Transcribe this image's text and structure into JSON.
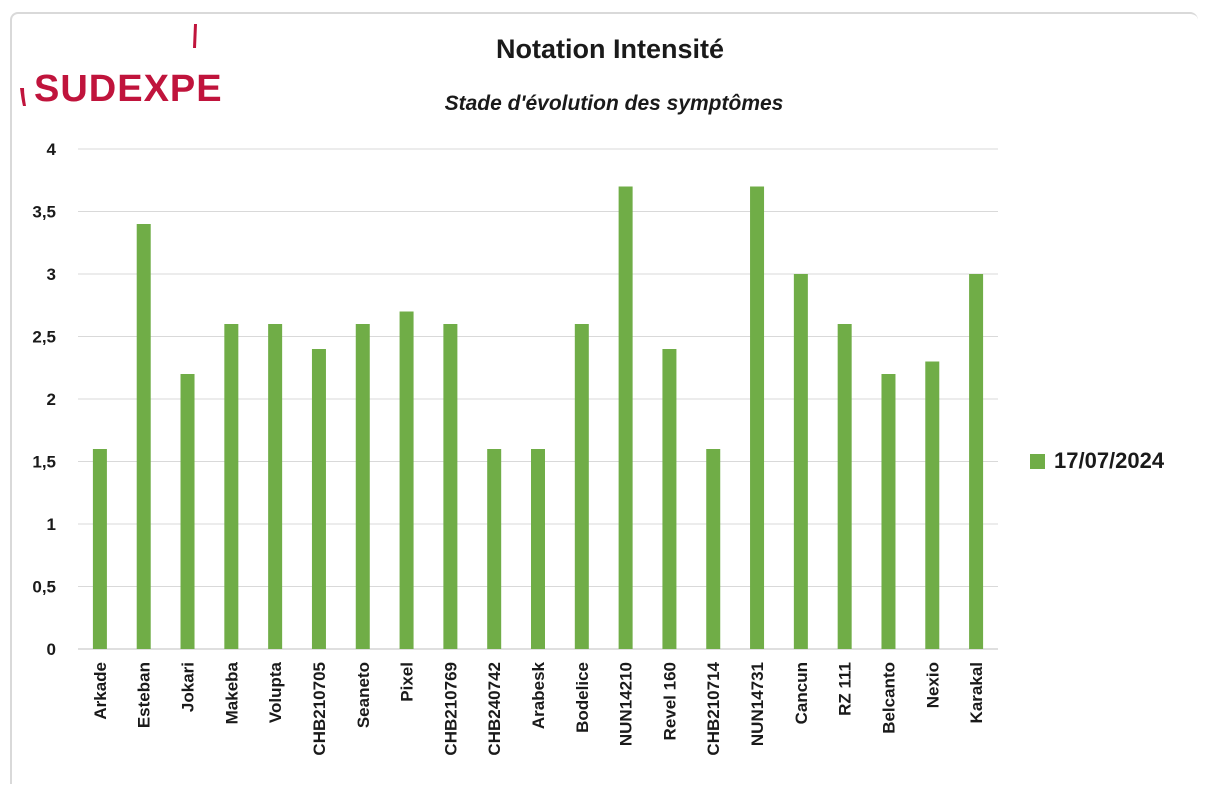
{
  "logo": {
    "text": "SUDEXPE",
    "color": "#c0143c"
  },
  "chart_data": {
    "type": "bar",
    "title": "Notation Intensité",
    "subtitle": "Stade d'évolution des symptômes",
    "xlabel": "",
    "ylabel": "",
    "ylim": [
      0,
      4
    ],
    "yticks": [
      "0",
      "0,5",
      "1",
      "1,5",
      "2",
      "2,5",
      "3",
      "3,5",
      "4"
    ],
    "grid": true,
    "legend_position": "right",
    "categories": [
      "Arkade",
      "Esteban",
      "Jokari",
      "Makeba",
      "Volupta",
      "CHB210705",
      "Seaneto",
      "Pixel",
      "CHB210769",
      "CHB240742",
      "Arabesk",
      "Bodelice",
      "NUN14210",
      "Revel 160",
      "CHB210714",
      "NUN14731",
      "Cancun",
      "RZ 111",
      "Belcanto",
      "Nexio",
      "Karakal"
    ],
    "series": [
      {
        "name": "17/07/2024",
        "color": "#70ad47",
        "values": [
          1.6,
          3.4,
          2.2,
          2.6,
          2.6,
          2.4,
          2.6,
          2.7,
          2.6,
          1.6,
          1.6,
          2.6,
          3.7,
          2.4,
          1.6,
          3.7,
          3.0,
          2.6,
          2.2,
          2.3,
          3.0
        ]
      }
    ]
  }
}
